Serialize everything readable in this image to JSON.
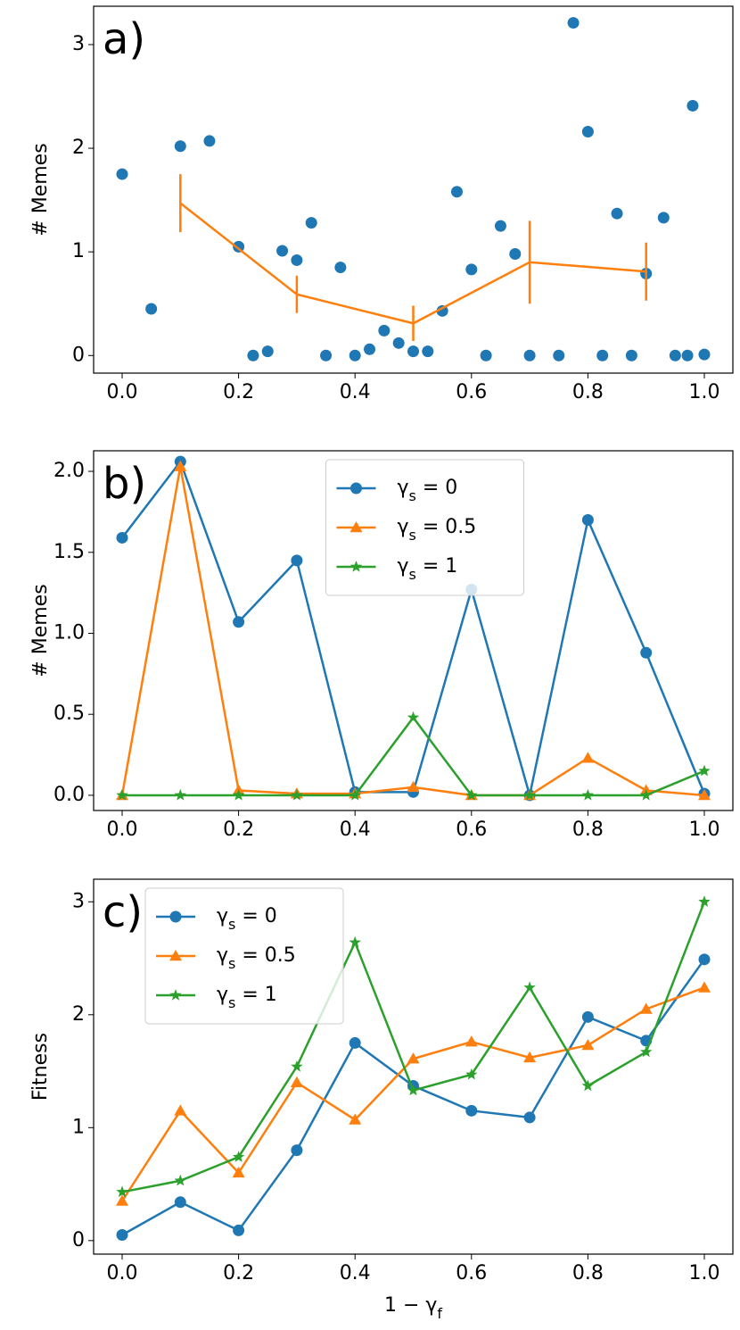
{
  "chart_data": [
    {
      "type": "scatter",
      "label": "a)",
      "ylabel": "# Memes",
      "xlim": [
        -0.049,
        1.049
      ],
      "ylim": [
        -0.17,
        3.37
      ],
      "xticks": [
        {
          "value": 0,
          "label": "0.0"
        },
        {
          "value": 0.2,
          "label": "0.2"
        },
        {
          "value": 0.4,
          "label": "0.4"
        },
        {
          "value": 0.6,
          "label": "0.6"
        },
        {
          "value": 0.8,
          "label": "0.8"
        },
        {
          "value": 1,
          "label": "1.0"
        }
      ],
      "yticks": [
        0,
        1,
        2,
        3
      ],
      "series": [
        {
          "type": "scatter",
          "color": "#1f77b4",
          "x": [
            0.0,
            0.05,
            0.1,
            0.15,
            0.2,
            0.225,
            0.25,
            0.275,
            0.3,
            0.325,
            0.35,
            0.375,
            0.4,
            0.425,
            0.45,
            0.475,
            0.5,
            0.525,
            0.55,
            0.575,
            0.6,
            0.625,
            0.65,
            0.675,
            0.7,
            0.75,
            0.775,
            0.8,
            0.825,
            0.85,
            0.875,
            0.9,
            0.93,
            0.95,
            0.971,
            0.98,
            1.0
          ],
          "values": [
            1.75,
            0.45,
            2.02,
            2.07,
            1.05,
            0.0,
            0.04,
            1.01,
            0.92,
            1.28,
            0.0,
            0.85,
            0.0,
            0.06,
            0.24,
            0.12,
            0.04,
            0.04,
            0.43,
            1.58,
            0.83,
            0.0,
            1.25,
            0.98,
            0.0,
            0.0,
            3.21,
            2.16,
            0.0,
            1.37,
            0.0,
            0.79,
            1.33,
            0.0,
            0.0,
            2.41,
            0.01
          ]
        },
        {
          "type": "line",
          "color": "#ff7f0e",
          "x": [
            0.1,
            0.3,
            0.5,
            0.7,
            0.9
          ],
          "values": [
            1.47,
            0.59,
            0.31,
            0.9,
            0.81
          ],
          "errors": [
            0.28,
            0.18,
            0.17,
            0.4,
            0.28
          ]
        }
      ]
    },
    {
      "type": "line",
      "label": "b)",
      "ylabel": "# Memes",
      "legend": "upper center",
      "xlim": [
        -0.049,
        1.049
      ],
      "ylim": [
        -0.094,
        2.127
      ],
      "xticks": [
        {
          "value": 0,
          "label": "0.0"
        },
        {
          "value": 0.2,
          "label": "0.2"
        },
        {
          "value": 0.4,
          "label": "0.4"
        },
        {
          "value": 0.6,
          "label": "0.6"
        },
        {
          "value": 0.8,
          "label": "0.8"
        },
        {
          "value": 1,
          "label": "1.0"
        }
      ],
      "yticks": [
        {
          "value": 0,
          "label": "0.0"
        },
        {
          "value": 0.5,
          "label": "0.5"
        },
        {
          "value": 1,
          "label": "1.0"
        },
        {
          "value": 1.5,
          "label": "1.5"
        },
        {
          "value": 2,
          "label": "2.0"
        }
      ],
      "x": [
        0.0,
        0.1,
        0.2,
        0.3,
        0.4,
        0.5,
        0.6,
        0.7,
        0.8,
        0.9,
        1.0
      ],
      "series": [
        {
          "name": "γs = 0",
          "color": "#1f77b4",
          "marker": "circle",
          "values": [
            1.59,
            2.06,
            1.07,
            1.45,
            0.02,
            0.02,
            1.27,
            0.0,
            1.7,
            0.88,
            0.01
          ]
        },
        {
          "name": "γs = 0.5",
          "color": "#ff7f0e",
          "marker": "triangle",
          "values": [
            0.0,
            2.03,
            0.03,
            0.01,
            0.01,
            0.05,
            0.0,
            0.0,
            0.23,
            0.03,
            0.0
          ]
        },
        {
          "name": "γs = 1",
          "color": "#2ca02c",
          "marker": "star",
          "values": [
            0.0,
            0.0,
            0.0,
            0.0,
            0.0,
            0.48,
            0.0,
            0.0,
            0.0,
            0.0,
            0.15
          ]
        }
      ]
    },
    {
      "type": "line",
      "label": "c)",
      "ylabel": "Fitness",
      "xlabel": "1 − γf",
      "legend": "upper left",
      "xlim": [
        -0.049,
        1.049
      ],
      "ylim": [
        -0.12,
        3.2
      ],
      "xticks": [
        {
          "value": 0,
          "label": "0.0"
        },
        {
          "value": 0.2,
          "label": "0.2"
        },
        {
          "value": 0.4,
          "label": "0.4"
        },
        {
          "value": 0.6,
          "label": "0.6"
        },
        {
          "value": 0.8,
          "label": "0.8"
        },
        {
          "value": 1,
          "label": "1.0"
        }
      ],
      "yticks": [
        0,
        1,
        2,
        3
      ],
      "x": [
        0.0,
        0.1,
        0.2,
        0.3,
        0.4,
        0.5,
        0.6,
        0.7,
        0.8,
        0.9,
        1.0
      ],
      "series": [
        {
          "name": "γs = 0",
          "color": "#1f77b4",
          "marker": "circle",
          "values": [
            0.05,
            0.34,
            0.09,
            0.8,
            1.75,
            1.37,
            1.15,
            1.09,
            1.98,
            1.77,
            2.49
          ]
        },
        {
          "name": "γs = 0.5",
          "color": "#ff7f0e",
          "marker": "triangle",
          "values": [
            0.35,
            1.15,
            0.6,
            1.4,
            1.07,
            1.61,
            1.76,
            1.62,
            1.73,
            2.05,
            2.24
          ]
        },
        {
          "name": "γs = 1",
          "color": "#2ca02c",
          "marker": "star",
          "values": [
            0.43,
            0.53,
            0.74,
            1.54,
            2.64,
            1.33,
            1.47,
            2.24,
            1.37,
            1.67,
            3.0
          ]
        }
      ]
    }
  ]
}
